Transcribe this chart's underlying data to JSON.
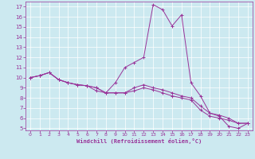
{
  "xlabel": "Windchill (Refroidissement éolien,°C)",
  "background_color": "#cce9f0",
  "line_color": "#993399",
  "xlim": [
    -0.5,
    23.5
  ],
  "ylim": [
    4.8,
    17.5
  ],
  "xticks": [
    0,
    1,
    2,
    3,
    4,
    5,
    6,
    7,
    8,
    9,
    10,
    11,
    12,
    13,
    14,
    15,
    16,
    17,
    18,
    19,
    20,
    21,
    22,
    23
  ],
  "yticks": [
    5,
    6,
    7,
    8,
    9,
    10,
    11,
    12,
    13,
    14,
    15,
    16,
    17
  ],
  "curve1_x": [
    0,
    1,
    2,
    3,
    4,
    5,
    6,
    7,
    8,
    9,
    10,
    11,
    12,
    13,
    14,
    15,
    16,
    17,
    18,
    19,
    20,
    21,
    22,
    23
  ],
  "curve1_y": [
    10.0,
    10.2,
    10.5,
    9.8,
    9.5,
    9.3,
    9.2,
    8.7,
    8.5,
    9.5,
    11.0,
    11.5,
    12.0,
    17.2,
    16.7,
    15.1,
    16.2,
    9.5,
    8.2,
    6.5,
    6.2,
    5.2,
    5.0,
    5.5
  ],
  "curve2_x": [
    0,
    1,
    2,
    3,
    4,
    5,
    6,
    7,
    8,
    9,
    10,
    11,
    12,
    13,
    14,
    15,
    16,
    17,
    18,
    19,
    20,
    21,
    22,
    23
  ],
  "curve2_y": [
    10.0,
    10.2,
    10.5,
    9.8,
    9.5,
    9.3,
    9.2,
    9.0,
    8.5,
    8.5,
    8.5,
    9.0,
    9.3,
    9.0,
    8.8,
    8.5,
    8.2,
    8.0,
    7.2,
    6.5,
    6.3,
    6.0,
    5.5,
    5.5
  ],
  "curve3_x": [
    0,
    1,
    2,
    3,
    4,
    5,
    6,
    7,
    8,
    9,
    10,
    11,
    12,
    13,
    14,
    15,
    16,
    17,
    18,
    19,
    20,
    21,
    22,
    23
  ],
  "curve3_y": [
    10.0,
    10.2,
    10.5,
    9.8,
    9.5,
    9.3,
    9.2,
    9.0,
    8.5,
    8.5,
    8.5,
    8.7,
    9.0,
    8.8,
    8.5,
    8.2,
    8.0,
    7.8,
    6.8,
    6.2,
    6.0,
    5.8,
    5.5,
    5.5
  ]
}
